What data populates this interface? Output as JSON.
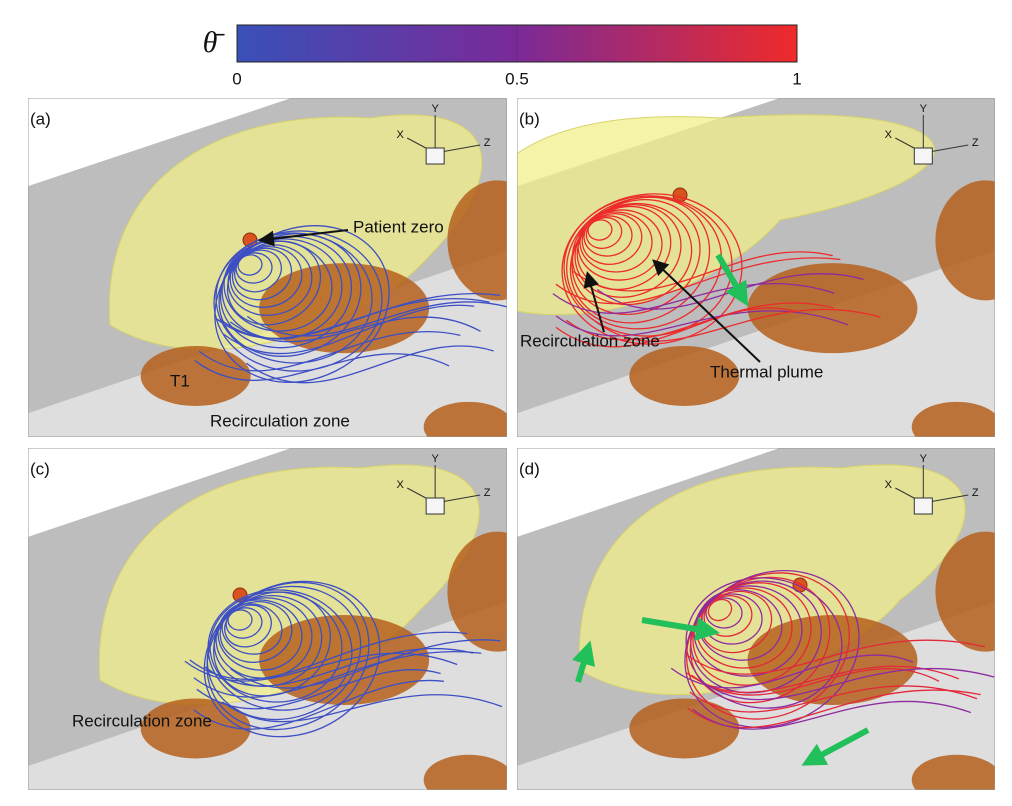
{
  "colorbar": {
    "label": "θ̄",
    "lim": [
      0,
      1
    ],
    "ticks": [
      0,
      0.5,
      1
    ],
    "colors": [
      "#3a50b8",
      "#7a2a98",
      "#ef2a2a"
    ]
  },
  "panels": [
    {
      "label": "(a)",
      "axes": [
        "X",
        "Y",
        "Z"
      ],
      "annotations": [
        "Patient zero",
        "T1",
        "Recirculation zone"
      ]
    },
    {
      "label": "(b)",
      "axes": [
        "X",
        "Y",
        "Z"
      ],
      "annotations": [
        "Recirculation zone",
        "Thermal plume"
      ]
    },
    {
      "label": "(c)",
      "axes": [
        "X",
        "Y",
        "Z"
      ],
      "annotations": [
        "Recirculation zone"
      ]
    },
    {
      "label": "(d)",
      "axes": [
        "X",
        "Y",
        "Z"
      ],
      "annotations": []
    }
  ]
}
